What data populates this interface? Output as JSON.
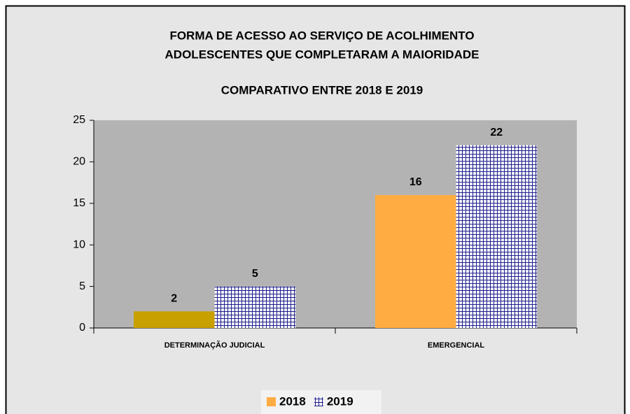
{
  "chart_data": {
    "type": "bar",
    "title": [
      "FORMA DE ACESSO AO SERVIÇO DE ACOLHIMENTO",
      "ADOLESCENTES QUE COMPLETARAM A MAIORIDADE"
    ],
    "subtitle": "COMPARATIVO ENTRE 2018 E 2019",
    "categories": [
      "DETERMINAÇÃO JUDICIAL",
      "EMERGENCIAL"
    ],
    "series": [
      {
        "name": "2018",
        "color": "#ffad42",
        "point_colors": [
          "#c8a000",
          "#ffad42"
        ],
        "values": [
          2,
          16
        ]
      },
      {
        "name": "2019",
        "color": "#1a1a8c",
        "pattern": "grid",
        "values": [
          5,
          22
        ]
      }
    ],
    "ylim": [
      0,
      25
    ],
    "yticks": [
      0,
      5,
      10,
      15,
      20,
      25
    ],
    "grid": false,
    "legend": "bottom"
  }
}
